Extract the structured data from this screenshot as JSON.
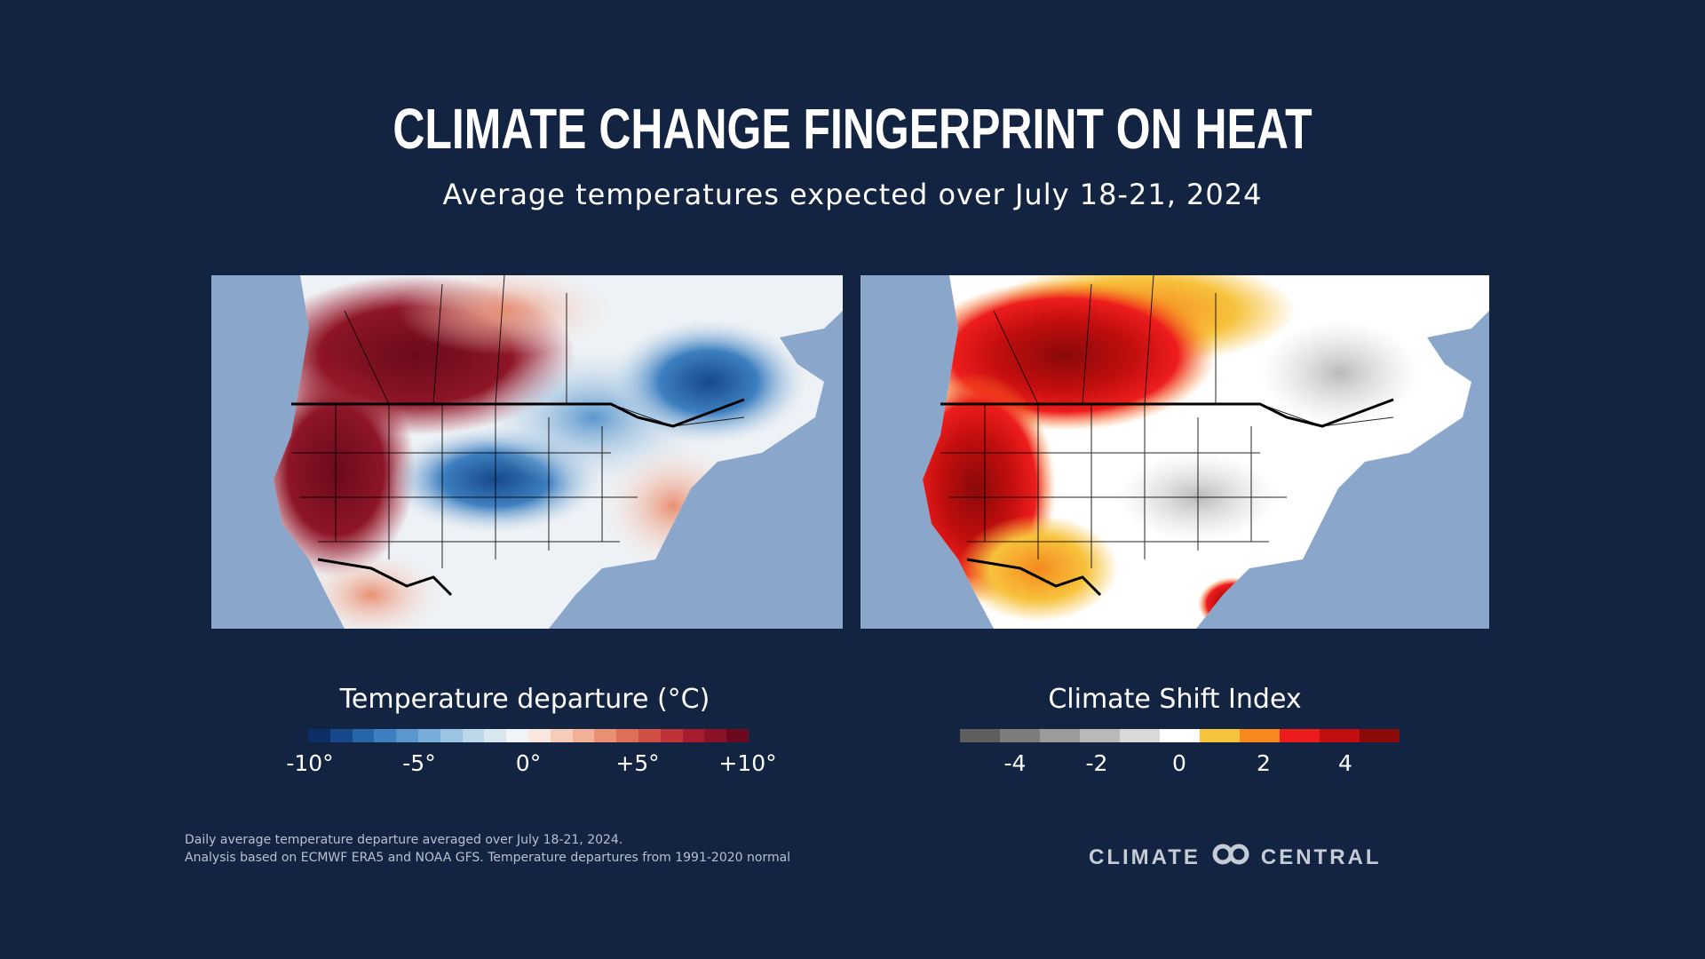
{
  "header": {
    "title": "CLIMATE CHANGE FINGERPRINT ON HEAT",
    "subtitle": "Average temperatures expected over July 18-21, 2024"
  },
  "maps": {
    "left": {
      "legend_title": "Temperature departure (°C)",
      "ticks": [
        "-10°",
        "-5°",
        "0°",
        "+5°",
        "+10°"
      ],
      "colors": [
        "#0b2f66",
        "#17498a",
        "#2565a8",
        "#3d7fc0",
        "#5a97cd",
        "#79acd8",
        "#9bc3e2",
        "#bcd6ea",
        "#d8e6f0",
        "#f0f4f7",
        "#f9e6de",
        "#f7cdb9",
        "#f2b096",
        "#e99073",
        "#dd6f57",
        "#cf4f44",
        "#bd3337",
        "#a51d2e",
        "#891226",
        "#6b0a1c"
      ]
    },
    "right": {
      "legend_title": "Climate Shift Index",
      "ticks": [
        "-4",
        "-2",
        "0",
        "2",
        "4"
      ],
      "colors": [
        "#5e5e5e",
        "#7d7d7d",
        "#9b9b9b",
        "#b9b9b9",
        "#d9d9d9",
        "#ffffff",
        "#f7c23c",
        "#f68a1f",
        "#ee1d1d",
        "#c20e0e",
        "#8a0909"
      ]
    }
  },
  "footnotes": [
    "Daily average temperature departure averaged over July 18-21, 2024.",
    "Analysis based on ECMWF ERA5 and NOAA GFS. Temperature departures from 1991-2020 normal"
  ],
  "brand": {
    "left": "CLIMATE",
    "right": "CENTRAL"
  }
}
